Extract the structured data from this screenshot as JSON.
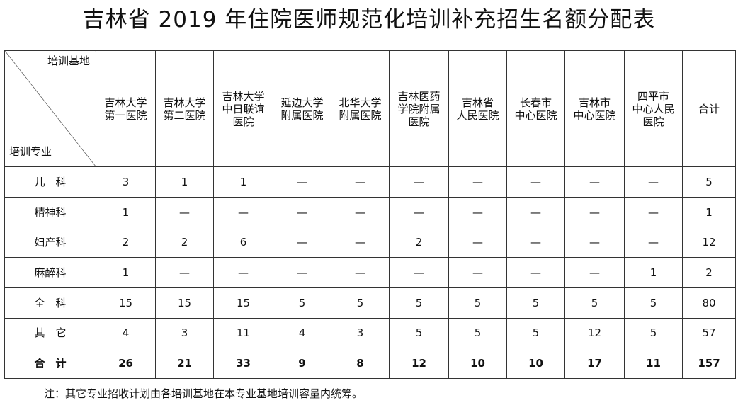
{
  "title": "吉林省 2019 年住院医师规范化培训补充招生名额分配表",
  "header": {
    "corner_top": "培训基地",
    "corner_bottom": "培训专业",
    "columns": [
      "吉林大学\n第一医院",
      "吉林大学\n第二医院",
      "吉林大学\n中日联谊\n医院",
      "延边大学\n附属医院",
      "北华大学\n附属医院",
      "吉林医药\n学院附属\n医院",
      "吉林省\n人民医院",
      "长春市\n中心医院",
      "吉林市\n中心医院",
      "四平市\n中心人民\n医院",
      "合计"
    ]
  },
  "rows": [
    {
      "label": "儿　科",
      "cells": [
        "3",
        "1",
        "1",
        "—",
        "—",
        "—",
        "—",
        "—",
        "—",
        "—",
        "5"
      ]
    },
    {
      "label": "精神科",
      "cells": [
        "1",
        "—",
        "—",
        "—",
        "—",
        "—",
        "—",
        "—",
        "—",
        "—",
        "1"
      ]
    },
    {
      "label": "妇产科",
      "cells": [
        "2",
        "2",
        "6",
        "—",
        "—",
        "2",
        "—",
        "—",
        "—",
        "—",
        "12"
      ]
    },
    {
      "label": "麻醉科",
      "cells": [
        "1",
        "—",
        "—",
        "—",
        "—",
        "—",
        "—",
        "—",
        "—",
        "1",
        "2"
      ]
    },
    {
      "label": "全　科",
      "cells": [
        "15",
        "15",
        "15",
        "5",
        "5",
        "5",
        "5",
        "5",
        "5",
        "5",
        "80"
      ]
    },
    {
      "label": "其　它",
      "cells": [
        "4",
        "3",
        "11",
        "4",
        "3",
        "5",
        "5",
        "5",
        "12",
        "5",
        "57"
      ]
    }
  ],
  "total": {
    "label": "合　计",
    "cells": [
      "26",
      "21",
      "33",
      "9",
      "8",
      "12",
      "10",
      "10",
      "17",
      "11",
      "157"
    ]
  },
  "note": "注：其它专业招收计划由各培训基地在本专业基地培训容量内统筹。"
}
